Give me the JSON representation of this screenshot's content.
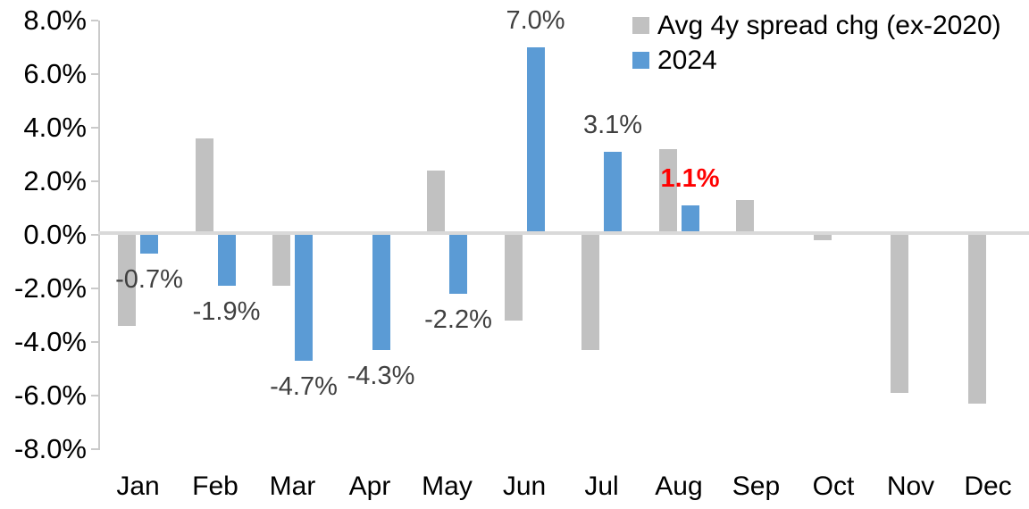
{
  "chart_data": {
    "type": "bar",
    "title": "",
    "xlabel": "",
    "ylabel": "",
    "categories": [
      "Jan",
      "Feb",
      "Mar",
      "Apr",
      "May",
      "Jun",
      "Jul",
      "Aug",
      "Sep",
      "Oct",
      "Nov",
      "Dec"
    ],
    "series": [
      {
        "name": "Avg 4y spread chg (ex-2020)",
        "color": "#C1C1C1",
        "values": [
          -3.4,
          3.6,
          -1.9,
          0.0,
          2.4,
          -3.2,
          -4.3,
          3.2,
          1.3,
          -0.2,
          -5.9,
          -6.3
        ]
      },
      {
        "name": "2024",
        "color": "#5B9BD5",
        "values": [
          -0.7,
          -1.9,
          -4.7,
          -4.3,
          -2.2,
          7.0,
          3.1,
          1.1,
          null,
          null,
          null,
          null
        ]
      }
    ],
    "data_labels": [
      {
        "category": "Jan",
        "text": "-0.7%",
        "color": "#404040",
        "bold": false
      },
      {
        "category": "Feb",
        "text": "-1.9%",
        "color": "#404040",
        "bold": false
      },
      {
        "category": "Mar",
        "text": "-4.7%",
        "color": "#404040",
        "bold": false
      },
      {
        "category": "Apr",
        "text": "-4.3%",
        "color": "#404040",
        "bold": false
      },
      {
        "category": "May",
        "text": "-2.2%",
        "color": "#404040",
        "bold": false
      },
      {
        "category": "Jun",
        "text": "7.0%",
        "color": "#404040",
        "bold": false
      },
      {
        "category": "Jul",
        "text": "3.1%",
        "color": "#404040",
        "bold": false
      },
      {
        "category": "Aug",
        "text": "1.1%",
        "color": "#FF0000",
        "bold": true
      }
    ],
    "y_axis": {
      "min": -8,
      "max": 8,
      "step": 2,
      "tick_labels": [
        "8.0%",
        "6.0%",
        "4.0%",
        "2.0%",
        "0.0%",
        "-2.0%",
        "-4.0%",
        "-6.0%",
        "-8.0%"
      ]
    },
    "legend_position": "top-right",
    "grid": false,
    "axis_line_color": "#CACACA",
    "zero_line_color": "#D9D9D9",
    "background": "#FFFFFF"
  }
}
